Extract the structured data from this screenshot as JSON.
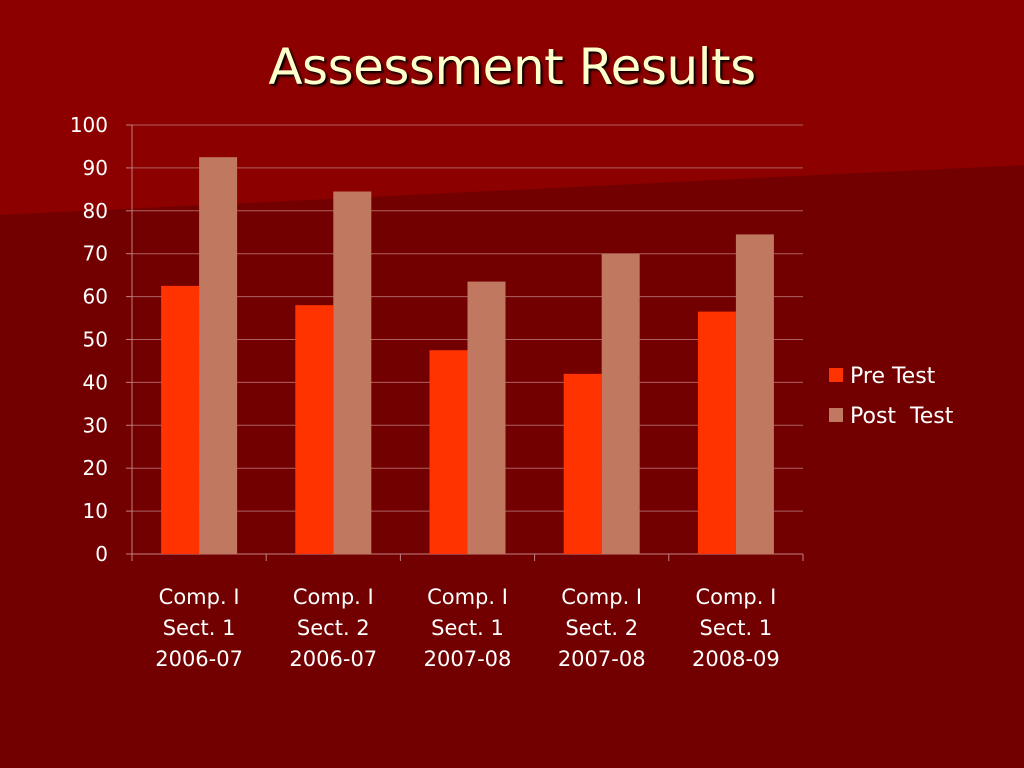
{
  "slide": {
    "title": "Assessment Results",
    "background_color": "#730000",
    "accent_band_color": "#8C0000",
    "title_color": "#FFFFCC"
  },
  "chart_data": {
    "type": "bar",
    "title": "",
    "xlabel": "",
    "ylabel": "",
    "ylim": [
      0,
      100
    ],
    "yticks": [
      0,
      10,
      20,
      30,
      40,
      50,
      60,
      70,
      80,
      90,
      100
    ],
    "grid": true,
    "legend_position": "right",
    "categories": [
      [
        "Comp. I",
        "Sect. 1",
        "2006-07"
      ],
      [
        "Comp. I",
        "Sect. 2",
        "2006-07"
      ],
      [
        "Comp. I",
        "Sect. 1",
        "2007-08"
      ],
      [
        "Comp. I",
        "Sect. 2",
        "2007-08"
      ],
      [
        "Comp. I",
        "Sect. 1",
        "2008-09"
      ]
    ],
    "series": [
      {
        "name": "Pre Test",
        "color": "#FF3300",
        "values": [
          62.5,
          58,
          47.5,
          42,
          56.5
        ]
      },
      {
        "name": "Post  Test",
        "color": "#C07860",
        "values": [
          92.5,
          84.5,
          63.5,
          70,
          74.5
        ]
      }
    ]
  }
}
